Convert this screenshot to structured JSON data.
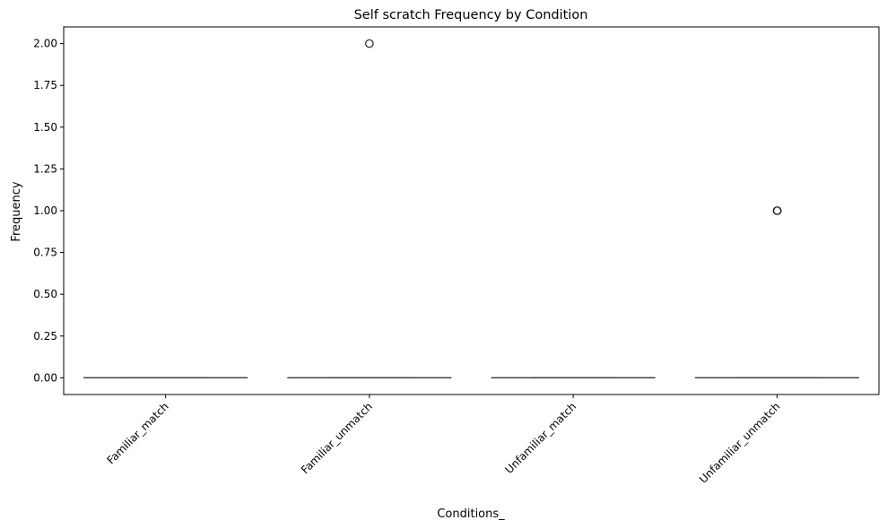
{
  "chart_data": {
    "type": "box",
    "title": "Self scratch Frequency by Condition",
    "xlabel": "Conditions_",
    "ylabel": "Frequency",
    "ylim": [
      -0.1,
      2.1
    ],
    "yticks": [
      0.0,
      0.25,
      0.5,
      0.75,
      1.0,
      1.25,
      1.5,
      1.75,
      2.0
    ],
    "ytick_labels": [
      "0.00",
      "0.25",
      "0.50",
      "0.75",
      "1.00",
      "1.25",
      "1.50",
      "1.75",
      "2.00"
    ],
    "categories": [
      "Familiar_match",
      "Familiar_unmatch",
      "Unfamiliar_match",
      "Unfamiliar_unmatch"
    ],
    "boxes": [
      {
        "category": "Familiar_match",
        "whisker_low": 0,
        "q1": 0,
        "median": 0,
        "q3": 0,
        "whisker_high": 0,
        "outliers": []
      },
      {
        "category": "Familiar_unmatch",
        "whisker_low": 0,
        "q1": 0,
        "median": 0,
        "q3": 0,
        "whisker_high": 0,
        "outliers": [
          2.0
        ]
      },
      {
        "category": "Unfamiliar_match",
        "whisker_low": 0,
        "q1": 0,
        "median": 0,
        "q3": 0,
        "whisker_high": 0,
        "outliers": []
      },
      {
        "category": "Unfamiliar_unmatch",
        "whisker_low": 0,
        "q1": 0,
        "median": 0,
        "q3": 0,
        "whisker_high": 0,
        "outliers": [
          1.0,
          1.0
        ]
      }
    ],
    "grid": false,
    "legend": "none",
    "xtick_rotation": 45
  }
}
